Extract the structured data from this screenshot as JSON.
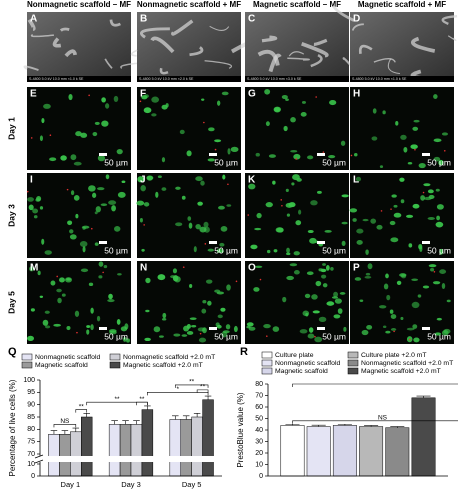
{
  "column_titles": [
    "Nonmagnetic scaffold – MF",
    "Nonmagnetic scaffold + MF",
    "Magnetic scaffold – MF",
    "Magnetic scaffold + MF"
  ],
  "panel_letters": [
    "A",
    "B",
    "C",
    "D",
    "E",
    "F",
    "G",
    "H",
    "I",
    "J",
    "K",
    "L",
    "M",
    "N",
    "O",
    "P"
  ],
  "row_labels": [
    "Day 1",
    "Day 3",
    "Day 5"
  ],
  "scale_bar_label": "50 µm",
  "sem_info": [
    "S-4800 5.0 kV 10.0 mm ×1.0 k SE",
    "S-4800 5.0 kV 10.0 mm ×2.0 k SE",
    "S-4800 5.0 kV 10.0 mm ×3.0 k SE",
    "S-4800 5.0 kV 10.0 mm ×1.0 k SE"
  ],
  "chart_data": [
    {
      "type": "bar",
      "panel_letter": "Q",
      "ylabel": "Percentage of live cells (%)",
      "categories": [
        "Day 1",
        "Day 3",
        "Day 5"
      ],
      "series": [
        {
          "name": "Nonmagnetic scaffold",
          "color": "#e4e4f4",
          "values": [
            78,
            82,
            84
          ],
          "errors": [
            1.5,
            1.5,
            1.5
          ]
        },
        {
          "name": "Magnetic scaffold",
          "color": "#9a9a9a",
          "values": [
            78,
            82,
            84
          ],
          "errors": [
            1.5,
            1.5,
            1.5
          ]
        },
        {
          "name": "Nonmagnetic scaffold +2.0 mT",
          "color": "#cfcfd6",
          "values": [
            79,
            82,
            85
          ],
          "errors": [
            1.5,
            1.5,
            1.5
          ]
        },
        {
          "name": "Magnetic scaffold +2.0 mT",
          "color": "#4a4a4a",
          "values": [
            85,
            88,
            92
          ],
          "errors": [
            1.5,
            1.5,
            1.5
          ]
        }
      ],
      "ylim": [
        0,
        100
      ],
      "axis_break": [
        10,
        70
      ],
      "yticks": [
        0,
        10,
        70,
        75,
        80,
        85,
        90,
        95,
        100
      ],
      "annotations": [
        "NS",
        "**",
        "**",
        "**",
        "*",
        "**",
        "**"
      ]
    },
    {
      "type": "bar",
      "panel_letter": "R",
      "ylabel": "PrestoBlue value (%)",
      "series": [
        {
          "name": "Culture plate",
          "color": "#ffffff",
          "values": [
            44
          ],
          "errors": [
            1
          ]
        },
        {
          "name": "Nonmagnetic scaffold",
          "color": "#e4e4f4",
          "values": [
            43
          ],
          "errors": [
            1.2
          ]
        },
        {
          "name": "Magnetic scaffold",
          "color": "#d6d6ea",
          "values": [
            44
          ],
          "errors": [
            1
          ]
        },
        {
          "name": "Culture plate +2.0 mT",
          "color": "#b8b8b8",
          "values": [
            43
          ],
          "errors": [
            1
          ]
        },
        {
          "name": "Nonmagnetic scaffold +2.0 mT",
          "color": "#8a8a8a",
          "values": [
            42
          ],
          "errors": [
            1
          ]
        },
        {
          "name": "Magnetic scaffold +2.0 mT",
          "color": "#4a4a4a",
          "values": [
            68
          ],
          "errors": [
            1.5
          ]
        }
      ],
      "ylim": [
        0,
        80
      ],
      "yticks": [
        0,
        10,
        20,
        30,
        40,
        50,
        60,
        70,
        80
      ],
      "annotations": [
        "NS",
        "NS",
        "**",
        "**",
        "**"
      ]
    }
  ]
}
